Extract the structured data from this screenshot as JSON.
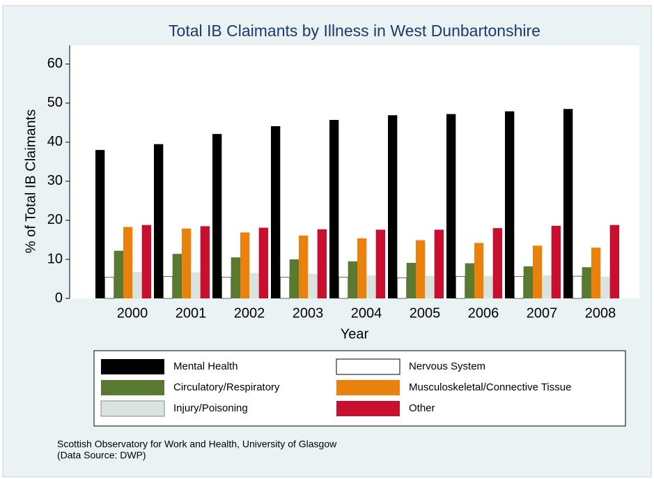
{
  "chart_data": {
    "type": "bar",
    "title": "Total IB Claimants by Illness in West Dunbartonshire",
    "x_label": "Year",
    "y_label": "% of Total IB Claimants",
    "categories": [
      "2000",
      "2001",
      "2002",
      "2003",
      "2004",
      "2005",
      "2006",
      "2007",
      "2008"
    ],
    "series": [
      {
        "name": "Mental Health",
        "color": "#000000",
        "values": [
          38,
          39.5,
          42.1,
          44.1,
          45.7,
          46.9,
          47.2,
          47.9,
          48.5
        ]
      },
      {
        "name": "Nervous System",
        "color": "#ffffff",
        "values": [
          5.4,
          5.6,
          5.4,
          5.4,
          5.4,
          5.3,
          5.6,
          5.6,
          5.7
        ]
      },
      {
        "name": "Circulatory/Respiratory",
        "color": "#5a7a32",
        "values": [
          12.2,
          11.4,
          10.5,
          10,
          9.5,
          9.1,
          9.0,
          8.2,
          8.0
        ]
      },
      {
        "name": "Musculoskeletal/Connective Tissue",
        "color": "#e8820c",
        "values": [
          18.3,
          17.9,
          16.9,
          16.1,
          15.4,
          14.9,
          14.2,
          13.5,
          13.0
        ]
      },
      {
        "name": "Injury/Poisoning",
        "color": "#d9e4de",
        "values": [
          6.8,
          6.7,
          6.5,
          6.3,
          5.9,
          5.8,
          5.8,
          5.9,
          5.6
        ]
      },
      {
        "name": "Other",
        "color": "#c8102e",
        "values": [
          18.8,
          18.5,
          18.1,
          17.7,
          17.6,
          17.6,
          18.0,
          18.6,
          18.8
        ]
      }
    ],
    "ylim": [
      0,
      64.8
    ],
    "yticks": [
      0,
      10,
      20,
      30,
      40,
      50,
      60
    ],
    "grid": false,
    "notes": [
      "Scottish Observatory for Work and Health, University of Glasgow",
      "(Data Source: DWP)"
    ]
  }
}
